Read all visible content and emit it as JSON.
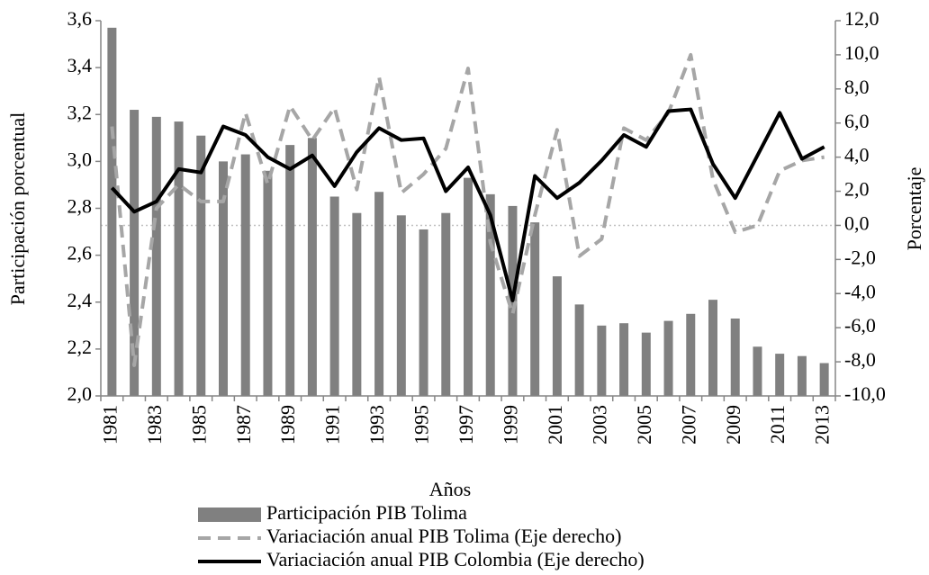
{
  "chart_data": {
    "type": "combo",
    "x_label": "Años",
    "y_label": "Participación porcentual",
    "y2_label": "Porcentaje",
    "categories": [
      "1981",
      null,
      "1983",
      null,
      "1985",
      null,
      "1987",
      null,
      "1989",
      null,
      "1991",
      null,
      "1993",
      null,
      "1995",
      null,
      "1997",
      null,
      "1999",
      null,
      "2001",
      null,
      "2003",
      null,
      "2005",
      null,
      "2007",
      null,
      "2009",
      null,
      "2011",
      null,
      "2013"
    ],
    "ylim": [
      2.0,
      3.6
    ],
    "yticks": [
      {
        "value": 2.0,
        "label": "2,0"
      },
      {
        "value": 2.2,
        "label": "2,2"
      },
      {
        "value": 2.4,
        "label": "2,4"
      },
      {
        "value": 2.6,
        "label": "2,6"
      },
      {
        "value": 2.8,
        "label": "2,8"
      },
      {
        "value": 3.0,
        "label": "3,0"
      },
      {
        "value": 3.2,
        "label": "3,2"
      },
      {
        "value": 3.4,
        "label": "3,4"
      },
      {
        "value": 3.6,
        "label": "3,6"
      }
    ],
    "y2lim": [
      -10,
      12
    ],
    "y2ticks": [
      {
        "value": -10,
        "label": "-10,0"
      },
      {
        "value": -8,
        "label": "-8,0"
      },
      {
        "value": -6,
        "label": "-6,0"
      },
      {
        "value": -4,
        "label": "-4,0"
      },
      {
        "value": -2,
        "label": "-2,0"
      },
      {
        "value": 0,
        "label": "0,0"
      },
      {
        "value": 2,
        "label": "2,0"
      },
      {
        "value": 4,
        "label": "4,0"
      },
      {
        "value": 6,
        "label": "6,0"
      },
      {
        "value": 8,
        "label": "8,0"
      },
      {
        "value": 10,
        "label": "10,0"
      },
      {
        "value": 12,
        "label": "12,0"
      }
    ],
    "legend": "bottom",
    "series": [
      {
        "name": "Participación PIB Tolima",
        "type": "bar",
        "color": "#808080",
        "values": [
          3.57,
          3.22,
          3.19,
          3.17,
          3.11,
          3.0,
          3.03,
          2.96,
          3.07,
          3.1,
          2.85,
          2.78,
          2.87,
          2.77,
          2.71,
          2.78,
          2.93,
          2.86,
          2.81,
          2.74,
          2.51,
          2.39,
          2.3,
          2.31,
          2.27,
          2.32,
          2.35,
          2.41,
          2.33,
          2.21,
          2.18,
          2.17,
          2.14
        ]
      },
      {
        "name": "Variaciación anual PIB Tolima (Eje derecho)",
        "type": "line",
        "axis": "y2",
        "style": "dashed",
        "color": "#a6a6a6",
        "values": [
          5.8,
          -8.2,
          1.0,
          2.4,
          1.4,
          1.4,
          6.6,
          2.4,
          7.0,
          5.0,
          6.9,
          2.1,
          8.7,
          1.9,
          3.0,
          4.5,
          9.2,
          -1.0,
          -5.2,
          0.6,
          5.6,
          -1.8,
          -0.8,
          5.7,
          5.0,
          6.6,
          10.0,
          2.7,
          -0.4,
          0.0,
          3.2,
          3.8,
          4.0
        ]
      },
      {
        "name": "Variaciación anual PIB Colombia (Eje derecho)",
        "type": "line",
        "axis": "y2",
        "style": "solid",
        "color": "#000000",
        "values": [
          2.2,
          0.8,
          1.4,
          3.3,
          3.1,
          5.8,
          5.3,
          4.0,
          3.3,
          4.1,
          2.3,
          4.3,
          5.7,
          5.0,
          5.1,
          2.0,
          3.4,
          0.6,
          -4.4,
          2.9,
          1.6,
          2.5,
          3.8,
          5.3,
          4.6,
          6.7,
          6.8,
          3.6,
          1.6,
          4.1,
          6.6,
          3.9,
          4.6
        ]
      }
    ]
  }
}
